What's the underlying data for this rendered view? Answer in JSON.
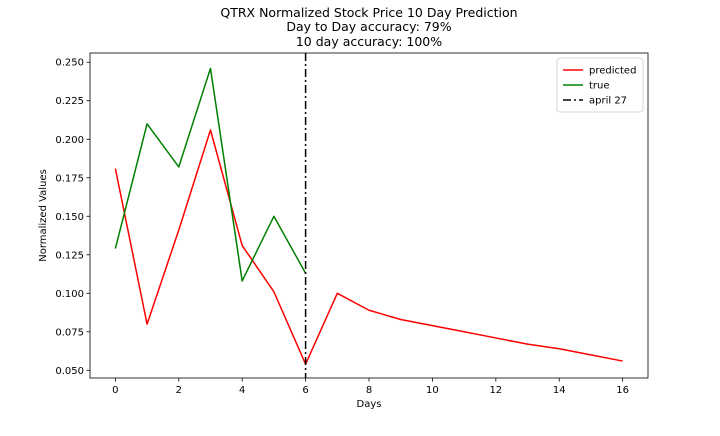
{
  "chart_data": {
    "type": "line",
    "title_lines": [
      "QTRX Normalized Stock Price 10 Day Prediction",
      "Day to Day accuracy: 79%",
      "10 day accuracy: 100%"
    ],
    "xlabel": "Days",
    "ylabel": "Normalized Values",
    "xlim": [
      -0.8,
      16.8
    ],
    "ylim": [
      0.045,
      0.256
    ],
    "xticks": [
      0,
      2,
      4,
      6,
      8,
      10,
      12,
      14,
      16
    ],
    "xtick_labels": [
      "0",
      "2",
      "4",
      "6",
      "8",
      "10",
      "12",
      "14",
      "16"
    ],
    "yticks": [
      0.05,
      0.075,
      0.1,
      0.125,
      0.15,
      0.175,
      0.2,
      0.225,
      0.25
    ],
    "ytick_labels": [
      "0.050",
      "0.075",
      "0.100",
      "0.125",
      "0.150",
      "0.175",
      "0.200",
      "0.225",
      "0.250"
    ],
    "grid": false,
    "legend_position": "top-right",
    "series": [
      {
        "name": "predicted",
        "color": "#ff0000",
        "style": "solid",
        "x": [
          0,
          1,
          2,
          3,
          4,
          5,
          6,
          7,
          8,
          9,
          10,
          11,
          12,
          13,
          14,
          15,
          16
        ],
        "y": [
          0.181,
          0.08,
          0.141,
          0.206,
          0.131,
          0.101,
          0.054,
          0.1,
          0.089,
          0.083,
          0.079,
          0.075,
          0.071,
          0.067,
          0.064,
          0.06,
          0.056
        ]
      },
      {
        "name": "true",
        "color": "#008000",
        "style": "solid",
        "x": [
          0,
          1,
          2,
          3,
          4,
          5,
          6
        ],
        "y": [
          0.129,
          0.21,
          0.182,
          0.246,
          0.108,
          0.15,
          0.113
        ]
      }
    ],
    "vlines": [
      {
        "name": "april 27",
        "x": 6,
        "color": "#000000",
        "style": "dashdot"
      }
    ]
  }
}
